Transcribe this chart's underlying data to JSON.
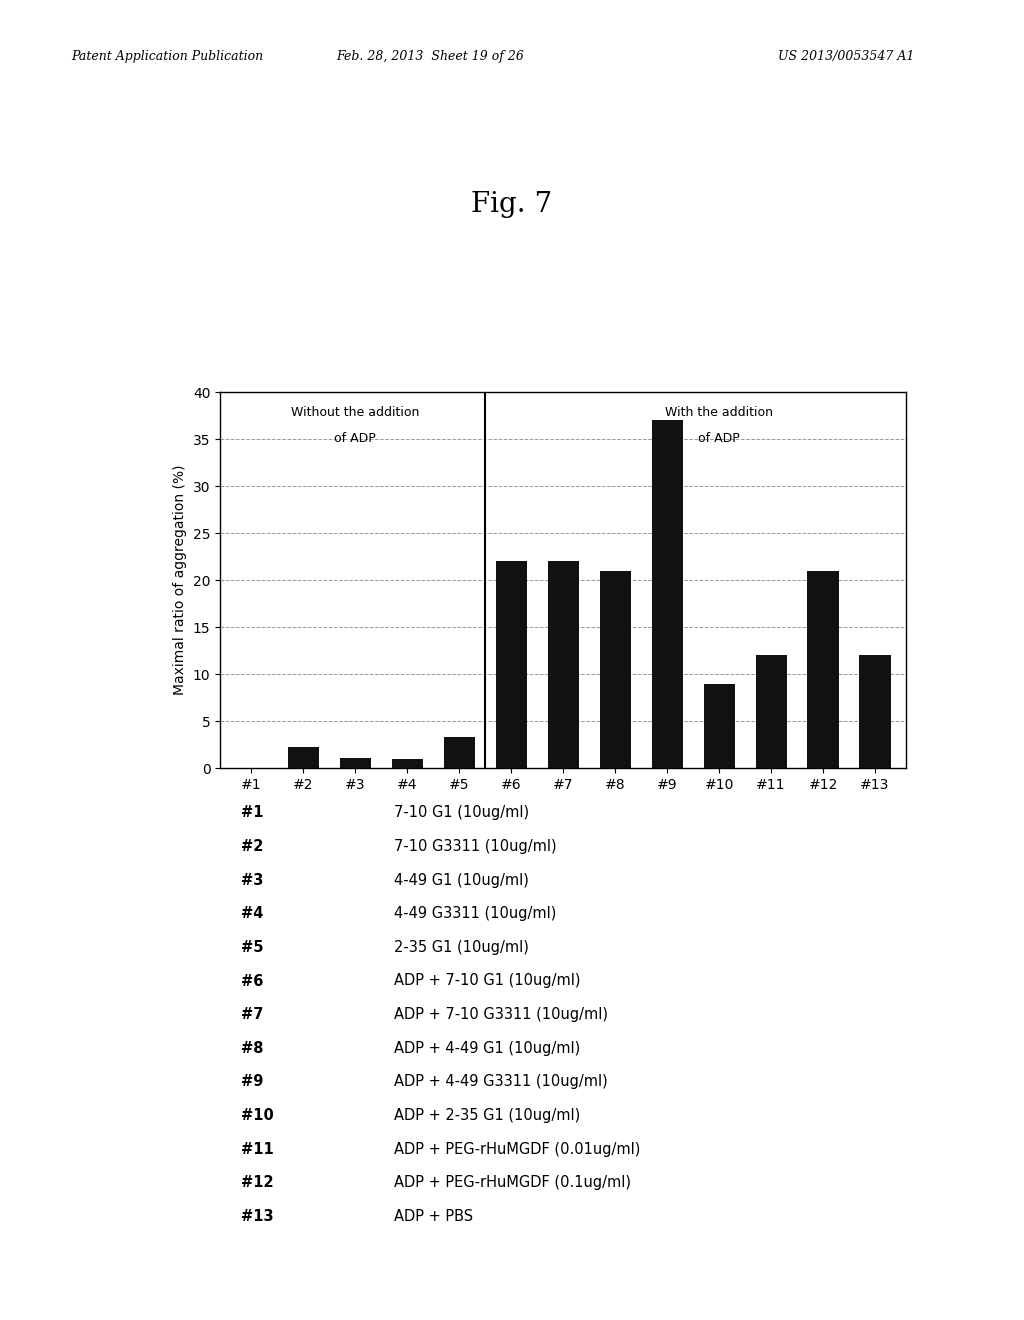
{
  "title": "Fig. 7",
  "header_left": "Patent Application Publication",
  "header_center": "Feb. 28, 2013  Sheet 19 of 26",
  "header_right": "US 2013/0053547 A1",
  "categories": [
    "#1",
    "#2",
    "#3",
    "#4",
    "#5",
    "#6",
    "#7",
    "#8",
    "#9",
    "#10",
    "#11",
    "#12",
    "#13"
  ],
  "values": [
    0,
    2.3,
    1.1,
    1.0,
    3.3,
    22.0,
    22.0,
    21.0,
    37.0,
    9.0,
    12.0,
    21.0,
    12.0
  ],
  "bar_color": "#111111",
  "ylabel": "Maximal ratio of aggregation (%)",
  "ylim": [
    0,
    40
  ],
  "yticks": [
    0,
    5,
    10,
    15,
    20,
    25,
    30,
    35,
    40
  ],
  "divider_after_index": 4,
  "left_label_line1": "Without the addition",
  "left_label_line2": "of ADP",
  "right_label_line1": "With the addition",
  "right_label_line2": "of ADP",
  "legend_items": [
    [
      "#1",
      "7-10 G1 (10ug/ml)"
    ],
    [
      "#2",
      "7-10 G3311 (10ug/ml)"
    ],
    [
      "#3",
      "4-49 G1 (10ug/ml)"
    ],
    [
      "#4",
      "4-49 G3311 (10ug/ml)"
    ],
    [
      "#5",
      "2-35 G1 (10ug/ml)"
    ],
    [
      "#6",
      "ADP + 7-10 G1 (10ug/ml)"
    ],
    [
      "#7",
      "ADP + 7-10 G3311 (10ug/ml)"
    ],
    [
      "#8",
      "ADP + 4-49 G1 (10ug/ml)"
    ],
    [
      "#9",
      "ADP + 4-49 G3311 (10ug/ml)"
    ],
    [
      "#10",
      "ADP + 2-35 G1 (10ug/ml)"
    ],
    [
      "#11",
      "ADP + PEG-rHuMGDF (0.01ug/ml)"
    ],
    [
      "#12",
      "ADP + PEG-rHuMGDF (0.1ug/ml)"
    ],
    [
      "#13",
      "ADP + PBS"
    ]
  ]
}
